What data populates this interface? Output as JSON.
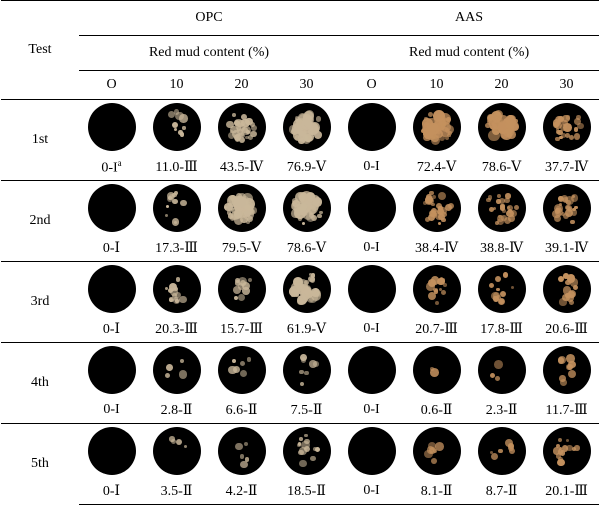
{
  "header": {
    "test_label": "Test",
    "group_opc": "OPC",
    "group_aas": "AAS",
    "sub_opc": "Red mud content (%)",
    "sub_aas": "Red mud content (%)",
    "cols_opc": [
      "O",
      "10",
      "20",
      "30"
    ],
    "cols_aas": [
      "O",
      "10",
      "20",
      "30"
    ]
  },
  "rows": [
    {
      "label": "1st",
      "values": [
        "0-I",
        "11.0-Ⅲ",
        "43.5-Ⅳ",
        "76.9-Ⅴ",
        "0-I",
        "72.4-Ⅴ",
        "78.6-Ⅴ",
        "37.7-Ⅳ"
      ],
      "coverage": [
        0.0,
        0.11,
        0.435,
        0.769,
        0.0,
        0.724,
        0.786,
        0.377
      ]
    },
    {
      "label": "2nd",
      "values": [
        "0-Ⅰ",
        "17.3-Ⅲ",
        "79.5-Ⅴ",
        "78.6-Ⅴ",
        "0-I",
        "38.4-Ⅳ",
        "38.8-Ⅳ",
        "39.1-Ⅳ"
      ],
      "coverage": [
        0.0,
        0.173,
        0.795,
        0.786,
        0.0,
        0.384,
        0.388,
        0.391
      ]
    },
    {
      "label": "3rd",
      "values": [
        "0-Ⅰ",
        "20.3-Ⅲ",
        "15.7-Ⅲ",
        "61.9-Ⅴ",
        "0-I",
        "20.7-Ⅲ",
        "17.8-Ⅲ",
        "20.6-Ⅲ"
      ],
      "coverage": [
        0.0,
        0.203,
        0.157,
        0.619,
        0.0,
        0.207,
        0.178,
        0.206
      ]
    },
    {
      "label": "4th",
      "values": [
        "0-I",
        "2.8-Ⅱ",
        "6.6-Ⅱ",
        "7.5-Ⅱ",
        "0-I",
        "0.6-Ⅱ",
        "2.3-Ⅱ",
        "11.7-Ⅲ"
      ],
      "coverage": [
        0.0,
        0.028,
        0.066,
        0.075,
        0.0,
        0.006,
        0.023,
        0.117
      ]
    },
    {
      "label": "5th",
      "values": [
        "0-Ⅰ",
        "3.5-Ⅱ",
        "4.2-Ⅱ",
        "18.5-Ⅱ",
        "0-I",
        "8.1-Ⅱ",
        "8.7-Ⅱ",
        "20.1-Ⅲ"
      ],
      "coverage": [
        0.0,
        0.035,
        0.042,
        0.185,
        0.0,
        0.081,
        0.087,
        0.201
      ]
    }
  ],
  "footnote_mark": "a",
  "colors": {
    "specimen_bg": "#000000",
    "stain_opc": "#c9b79a",
    "stain_aas": "#c4915e"
  }
}
